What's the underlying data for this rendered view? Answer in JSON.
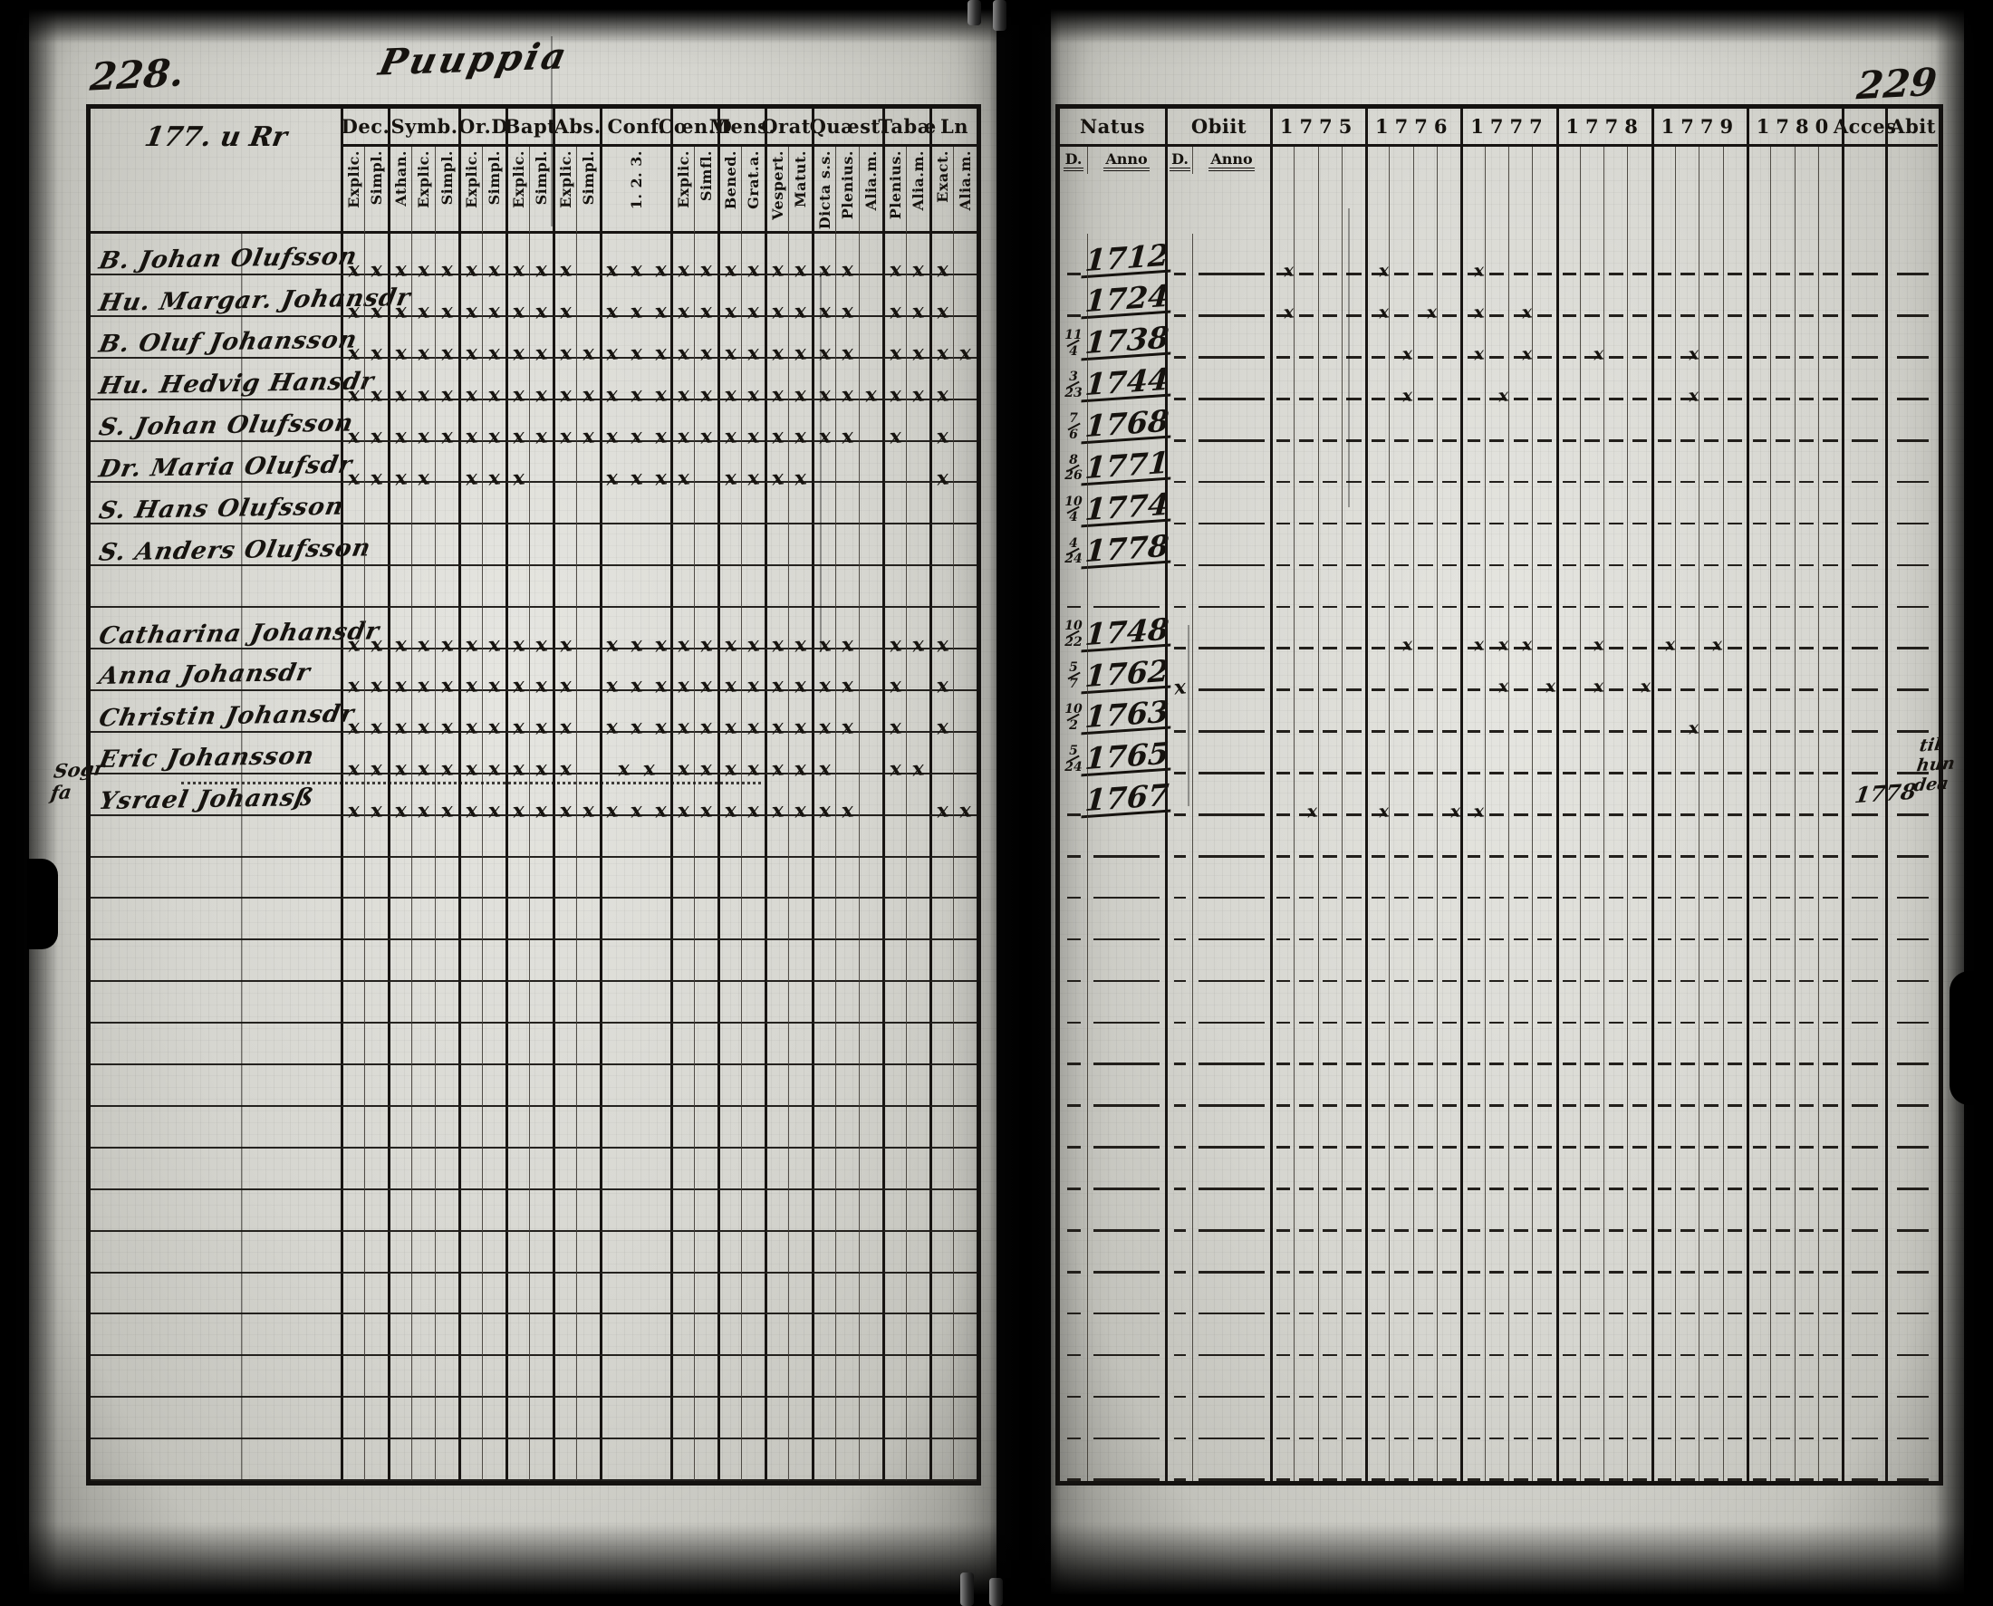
{
  "book": {
    "left_page_number": "228.",
    "right_page_number": "229",
    "title_script": "Puuppia",
    "name_header_script": "177. u Rr",
    "margin_note_left": "Sogr fa",
    "margin_note_right": "til hun dea",
    "margin_note_right_year": "1778",
    "ink_color": "#16130f",
    "paper_color": "#d6d6d0"
  },
  "left_table": {
    "groups": [
      {
        "label": "Dec.",
        "subs": [
          "Explic.",
          "Simpl."
        ]
      },
      {
        "label": "Symb.",
        "subs": [
          "Athan.",
          "Explic.",
          "Simpl."
        ]
      },
      {
        "label": "Or.D",
        "subs": [
          "Explic.",
          "Simpl."
        ]
      },
      {
        "label": "Bapt",
        "subs": [
          "Explic.",
          "Simpl."
        ]
      },
      {
        "label": "Abs.",
        "subs": [
          "Explic.",
          "Simpl."
        ]
      },
      {
        "label": "Conf.",
        "subs": [
          "1. 2. 3."
        ],
        "wide": true
      },
      {
        "label": "Cœn.D",
        "subs": [
          "Explic.",
          "Simfl."
        ]
      },
      {
        "label": "Mens.",
        "subs": [
          "Bened.",
          "Grat.a."
        ]
      },
      {
        "label": "Orat.",
        "subs": [
          "Vespert.",
          "Matut."
        ]
      },
      {
        "label": "Quæst.",
        "subs": [
          "Dicta s.s.",
          "Plenius.",
          "Alia.m."
        ]
      },
      {
        "label": "Tabæ",
        "subs": [
          "Plenius.",
          "Alia.m."
        ]
      },
      {
        "label": "Ln",
        "subs": [
          "Exact.",
          "Alia.m."
        ]
      }
    ]
  },
  "right_table": {
    "natus_label": "Natus",
    "obiit_label": "Obiit",
    "sub_labels": [
      "D.",
      "Anno",
      "D.",
      "Anno"
    ],
    "years": [
      "1775",
      "1776",
      "1777",
      "1778",
      "1779",
      "1780"
    ],
    "acces_label": "Acces",
    "abit_label": "Abit"
  },
  "persons": [
    {
      "row": 0,
      "name": "B. Johan Olufsson",
      "natus_day": "",
      "natus_year": "1712",
      "left_marks": [
        2,
        3,
        2,
        2,
        1,
        3,
        2,
        2,
        2,
        2,
        2,
        1
      ],
      "right_marks": [
        "1775:1",
        "1776:1",
        "1777:1"
      ]
    },
    {
      "row": 1,
      "name": "Hu. Margar. Johansdr",
      "natus_day": "",
      "natus_year": "1724",
      "left_marks": [
        2,
        3,
        2,
        2,
        1,
        3,
        2,
        2,
        2,
        2,
        2,
        1
      ],
      "right_marks": [
        "1775:1",
        "1776:1",
        "1776:3",
        "1777:1",
        "1777:3"
      ]
    },
    {
      "row": 2,
      "name": "B. Oluf Johansson",
      "natus_day": "11/4",
      "natus_year": "1738",
      "left_marks": [
        2,
        3,
        2,
        2,
        2,
        3,
        2,
        2,
        2,
        2,
        2,
        2
      ],
      "right_marks": [
        "1776:2",
        "1777:1",
        "1777:3",
        "1778:2",
        "1779:2"
      ]
    },
    {
      "row": 3,
      "name": "Hu. Hedvig Hansdr",
      "natus_day": "3/23",
      "natus_year": "1744",
      "left_marks": [
        2,
        3,
        2,
        2,
        2,
        3,
        2,
        2,
        2,
        3,
        2,
        1
      ],
      "right_marks": [
        "1776:2",
        "1777:2",
        "1779:2"
      ]
    },
    {
      "row": 4,
      "name": "S. Johan Olufsson",
      "natus_day": "7/6",
      "natus_year": "1768",
      "left_marks": [
        2,
        3,
        2,
        2,
        2,
        3,
        2,
        2,
        2,
        2,
        1,
        1
      ],
      "right_marks": []
    },
    {
      "row": 5,
      "name": "Dr. Maria Olufsdr",
      "natus_day": "8/26",
      "natus_year": "1771",
      "left_marks": [
        2,
        2,
        2,
        1,
        0,
        3,
        1,
        2,
        2,
        0,
        0,
        1
      ],
      "right_marks": []
    },
    {
      "row": 6,
      "name": "S. Hans Olufsson",
      "natus_day": "10/4",
      "natus_year": "1774",
      "left_marks": [
        0,
        0,
        0,
        0,
        0,
        0,
        0,
        0,
        0,
        0,
        0,
        0
      ],
      "right_marks": []
    },
    {
      "row": 7,
      "name": "S. Anders Olufsson",
      "natus_day": "4/24",
      "natus_year": "1778",
      "left_marks": [
        0,
        0,
        0,
        0,
        0,
        0,
        0,
        0,
        0,
        0,
        0,
        0
      ],
      "right_marks": []
    },
    {
      "row": 9,
      "name": "Catharina Johansdr",
      "natus_day": "10/22",
      "natus_year": "1748",
      "left_marks": [
        2,
        3,
        2,
        2,
        1,
        3,
        2,
        2,
        2,
        2,
        2,
        1
      ],
      "right_marks": [
        "1776:2",
        "1777:1",
        "1777:2",
        "1777:3",
        "1778:2",
        "1779:1",
        "1779:3"
      ]
    },
    {
      "row": 10,
      "name": "Anna Johansdr",
      "natus_day": "5/7",
      "natus_year": "1762",
      "left_marks": [
        2,
        3,
        2,
        2,
        1,
        3,
        2,
        2,
        2,
        2,
        1,
        1
      ],
      "obiit_mark": true,
      "right_marks": [
        "1777:2",
        "1777:4",
        "1778:2",
        "1778:4"
      ]
    },
    {
      "row": 11,
      "name": "Christin Johansdr",
      "natus_day": "10/2",
      "natus_year": "1763",
      "left_marks": [
        2,
        3,
        2,
        2,
        1,
        3,
        2,
        2,
        2,
        2,
        1,
        1
      ],
      "right_marks": [
        "1779:2"
      ]
    },
    {
      "row": 12,
      "name": "Eric Johansson",
      "natus_day": "5/24",
      "natus_year": "1765",
      "left_marks": [
        2,
        3,
        2,
        2,
        1,
        2,
        2,
        2,
        2,
        1,
        2,
        0
      ],
      "right_marks": []
    },
    {
      "row": 13,
      "name": "Ysrael Johansß",
      "natus_day": "",
      "natus_year": "1767",
      "left_marks": [
        2,
        3,
        2,
        2,
        2,
        3,
        2,
        2,
        2,
        2,
        0,
        2
      ],
      "right_marks": [
        "1775:2",
        "1776:1",
        "1776:4",
        "1777:1"
      ]
    }
  ],
  "layout_rows_total": 30
}
